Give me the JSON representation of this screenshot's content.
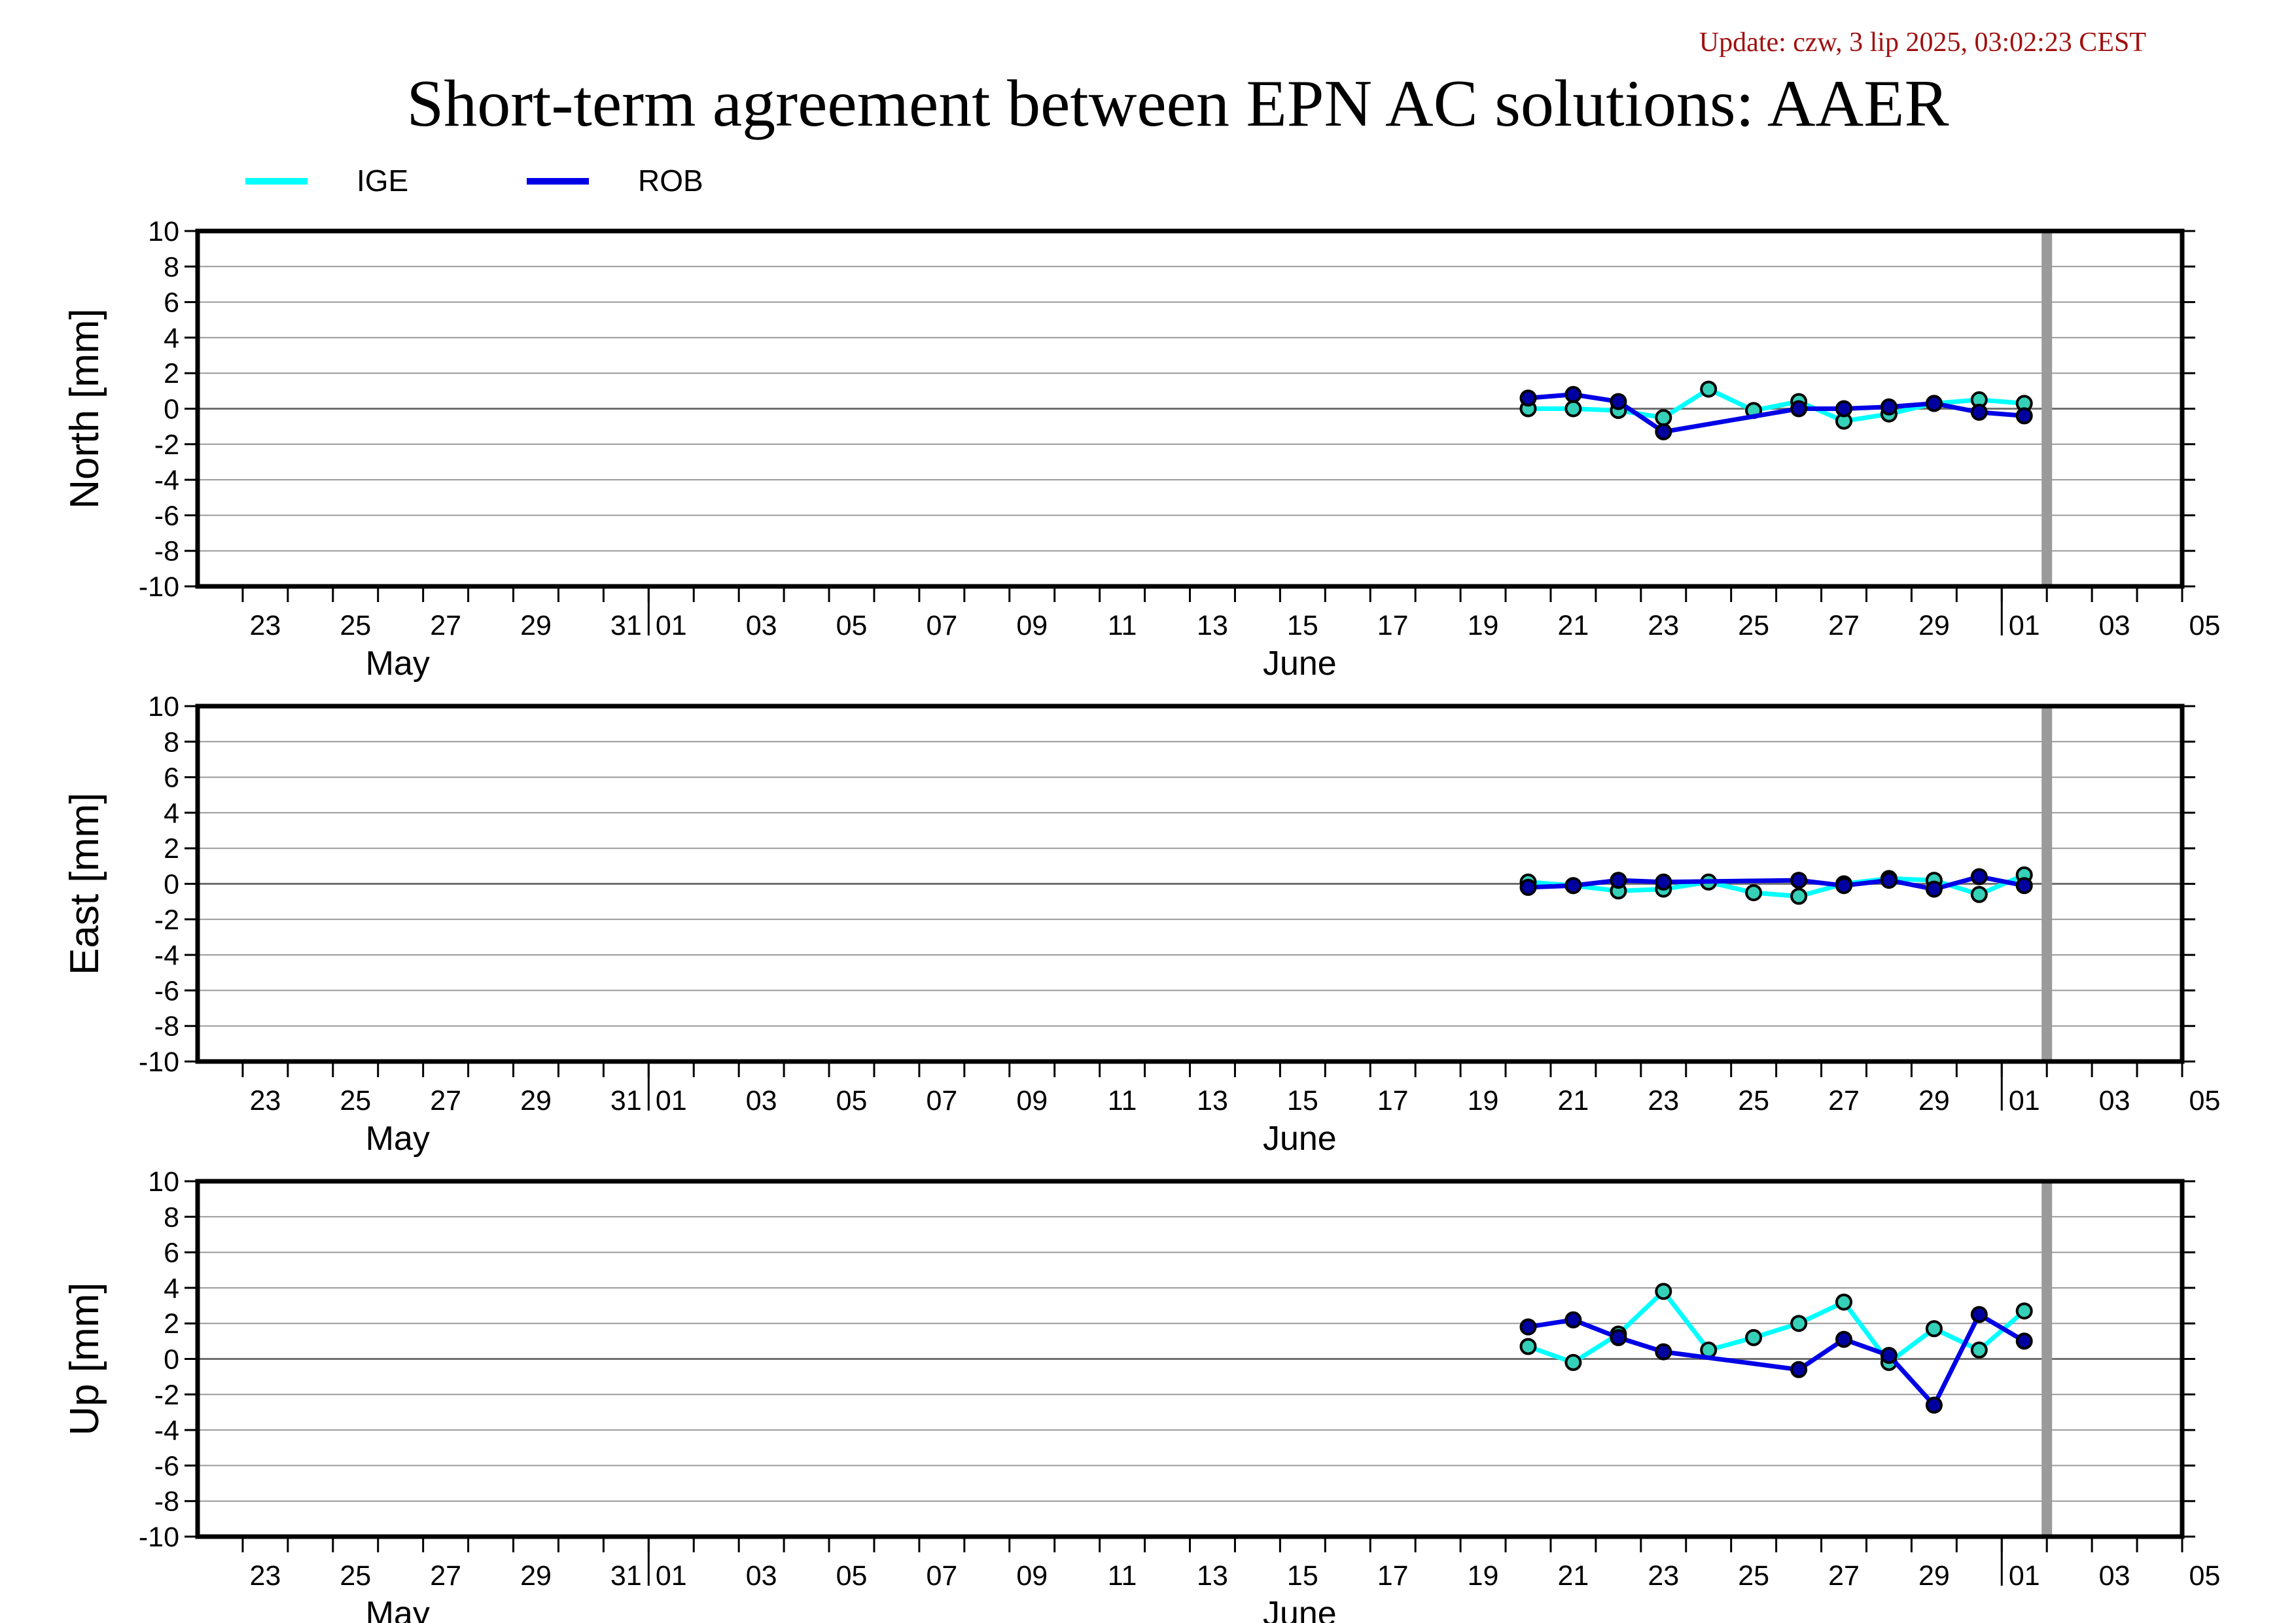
{
  "header": {
    "update": "Update: czw, 3 lip 2025, 03:02:23 CEST",
    "title": "Short-term agreement between EPN AC solutions: AAER"
  },
  "legend": [
    {
      "name": "IGE",
      "color": "#00ffff"
    },
    {
      "name": "ROB",
      "color": "#0000e6"
    }
  ],
  "colors": {
    "ige_line": "#00ffff",
    "ige_marker": "#35d0b8",
    "rob_line": "#0000e6",
    "rob_marker": "#0000a0",
    "today_bar": "#9a9a9a"
  },
  "chart_data": [
    {
      "type": "line",
      "ylabel": "North [mm]",
      "ylim": [
        -10,
        10
      ],
      "yticks": [
        10,
        8,
        6,
        4,
        2,
        0,
        -2,
        -4,
        -6,
        -8,
        -10
      ],
      "xrange": [
        "2025-05-22",
        "2025-07-05"
      ],
      "xtick_labels": [
        "23",
        "25",
        "27",
        "29",
        "31",
        "01",
        "03",
        "05",
        "07",
        "09",
        "11",
        "13",
        "15",
        "17",
        "19",
        "21",
        "23",
        "25",
        "27",
        "29",
        "01",
        "03",
        "05"
      ],
      "month_labels": [
        "May",
        "June"
      ],
      "today_marker": "2025-07-02",
      "grid": true,
      "series": [
        {
          "name": "IGE",
          "x": [
            "2025-06-20",
            "2025-06-21",
            "2025-06-22",
            "2025-06-23",
            "2025-06-24",
            "2025-06-25",
            "2025-06-26",
            "2025-06-27",
            "2025-06-28",
            "2025-06-29",
            "2025-06-30",
            "2025-07-01"
          ],
          "values": [
            0.0,
            0.0,
            -0.1,
            -0.5,
            1.1,
            -0.1,
            0.4,
            -0.7,
            -0.3,
            0.3,
            0.5,
            0.3
          ]
        },
        {
          "name": "ROB",
          "x": [
            "2025-06-20",
            "2025-06-21",
            "2025-06-22",
            "2025-06-23",
            "2025-06-26",
            "2025-06-27",
            "2025-06-28",
            "2025-06-29",
            "2025-06-30",
            "2025-07-01"
          ],
          "values": [
            0.6,
            0.8,
            0.4,
            -1.3,
            0.0,
            0.0,
            0.1,
            0.3,
            -0.2,
            -0.4
          ]
        }
      ]
    },
    {
      "type": "line",
      "ylabel": "East [mm]",
      "ylim": [
        -10,
        10
      ],
      "yticks": [
        10,
        8,
        6,
        4,
        2,
        0,
        -2,
        -4,
        -6,
        -8,
        -10
      ],
      "xrange": [
        "2025-05-22",
        "2025-07-05"
      ],
      "xtick_labels": [
        "23",
        "25",
        "27",
        "29",
        "31",
        "01",
        "03",
        "05",
        "07",
        "09",
        "11",
        "13",
        "15",
        "17",
        "19",
        "21",
        "23",
        "25",
        "27",
        "29",
        "01",
        "03",
        "05"
      ],
      "month_labels": [
        "May",
        "June"
      ],
      "today_marker": "2025-07-02",
      "grid": true,
      "series": [
        {
          "name": "IGE",
          "x": [
            "2025-06-20",
            "2025-06-21",
            "2025-06-22",
            "2025-06-23",
            "2025-06-24",
            "2025-06-25",
            "2025-06-26",
            "2025-06-27",
            "2025-06-28",
            "2025-06-29",
            "2025-06-30",
            "2025-07-01"
          ],
          "values": [
            0.1,
            -0.1,
            -0.4,
            -0.3,
            0.1,
            -0.5,
            -0.7,
            0.0,
            0.3,
            0.2,
            -0.6,
            0.5
          ]
        },
        {
          "name": "ROB",
          "x": [
            "2025-06-20",
            "2025-06-21",
            "2025-06-22",
            "2025-06-23",
            "2025-06-26",
            "2025-06-27",
            "2025-06-28",
            "2025-06-29",
            "2025-06-30",
            "2025-07-01"
          ],
          "values": [
            -0.2,
            -0.1,
            0.2,
            0.1,
            0.2,
            -0.1,
            0.2,
            -0.3,
            0.4,
            -0.1
          ]
        }
      ]
    },
    {
      "type": "line",
      "ylabel": "Up [mm]",
      "ylim": [
        -10,
        10
      ],
      "yticks": [
        10,
        8,
        6,
        4,
        2,
        0,
        -2,
        -4,
        -6,
        -8,
        -10
      ],
      "xrange": [
        "2025-05-22",
        "2025-07-05"
      ],
      "xtick_labels": [
        "23",
        "25",
        "27",
        "29",
        "31",
        "01",
        "03",
        "05",
        "07",
        "09",
        "11",
        "13",
        "15",
        "17",
        "19",
        "21",
        "23",
        "25",
        "27",
        "29",
        "01",
        "03",
        "05"
      ],
      "month_labels": [
        "May",
        "June"
      ],
      "today_marker": "2025-07-02",
      "grid": true,
      "series": [
        {
          "name": "IGE",
          "x": [
            "2025-06-20",
            "2025-06-21",
            "2025-06-22",
            "2025-06-23",
            "2025-06-24",
            "2025-06-25",
            "2025-06-26",
            "2025-06-27",
            "2025-06-28",
            "2025-06-29",
            "2025-06-30",
            "2025-07-01"
          ],
          "values": [
            0.7,
            -0.2,
            1.4,
            3.8,
            0.5,
            1.2,
            2.0,
            3.2,
            -0.2,
            1.7,
            0.5,
            2.7
          ]
        },
        {
          "name": "ROB",
          "x": [
            "2025-06-20",
            "2025-06-21",
            "2025-06-22",
            "2025-06-23",
            "2025-06-26",
            "2025-06-27",
            "2025-06-28",
            "2025-06-29",
            "2025-06-30",
            "2025-07-01"
          ],
          "values": [
            1.8,
            2.2,
            1.2,
            0.4,
            -0.6,
            1.1,
            0.2,
            -2.6,
            2.5,
            1.0
          ]
        }
      ]
    }
  ]
}
